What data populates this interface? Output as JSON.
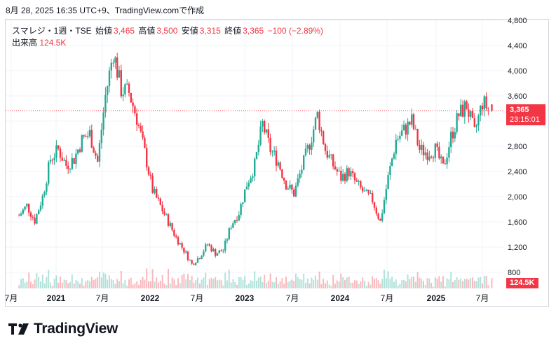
{
  "header": {
    "text": "8月 28, 2025 16:35 UTC+9、TradingView.comで作成"
  },
  "legend": {
    "symbol": "スマレジ・1週・TSE",
    "open_label": "始値",
    "open_value": "3,465",
    "high_label": "高値",
    "high_value": "3,500",
    "low_label": "安値",
    "low_value": "3,315",
    "close_label": "終値",
    "close_value": "3,365",
    "change": "−100 (−2.89%)",
    "volume_label": "出来高",
    "volume_value": "124.5K"
  },
  "badges": {
    "last_price": "3,365",
    "countdown": "23:15:01",
    "last_volume": "124.5K"
  },
  "logo": {
    "text": "TradingView",
    "icon": "tradingview-logo-icon"
  },
  "colors": {
    "up": "#22ab94",
    "down": "#f23645",
    "grid": "#f0f3fa",
    "text": "#131722"
  },
  "chart_data": {
    "type": "candlestick",
    "interval": "weekly",
    "y_axis": {
      "ticks": [
        "4,800",
        "4,400",
        "4,000",
        "3,600",
        "3,200",
        "2,800",
        "2,400",
        "2,000",
        "1,600",
        "1,200",
        "800"
      ],
      "ylim": [
        750,
        4800
      ]
    },
    "x_axis": {
      "ticks": [
        "7月",
        "2021",
        "7月",
        "2022",
        "7月",
        "2023",
        "7月",
        "2024",
        "7月",
        "2025",
        "7月"
      ]
    },
    "last_price": 3365,
    "grid": true,
    "anchors": [
      [
        "2020-08",
        1700
      ],
      [
        "2020-09",
        1860
      ],
      [
        "2020-10",
        1620
      ],
      [
        "2020-11",
        2000
      ],
      [
        "2020-12",
        2600
      ],
      [
        "2021-01",
        2750
      ],
      [
        "2021-02",
        2500
      ],
      [
        "2021-03",
        2600
      ],
      [
        "2021-04",
        2900
      ],
      [
        "2021-05",
        3000
      ],
      [
        "2021-06",
        2550
      ],
      [
        "2021-07",
        3600
      ],
      [
        "2021-08",
        4300
      ],
      [
        "2021-09",
        3700
      ],
      [
        "2021-10",
        3650
      ],
      [
        "2021-11",
        3250
      ],
      [
        "2021-12",
        2700
      ],
      [
        "2022-01",
        2100
      ],
      [
        "2022-02",
        1850
      ],
      [
        "2022-03",
        1600
      ],
      [
        "2022-04",
        1350
      ],
      [
        "2022-05",
        1150
      ],
      [
        "2022-06",
        930
      ],
      [
        "2022-07",
        1050
      ],
      [
        "2022-08",
        1250
      ],
      [
        "2022-09",
        1100
      ],
      [
        "2022-10",
        1150
      ],
      [
        "2022-11",
        1550
      ],
      [
        "2022-12",
        1750
      ],
      [
        "2023-01",
        2200
      ],
      [
        "2023-02",
        2500
      ],
      [
        "2023-03",
        3150
      ],
      [
        "2023-04",
        2750
      ],
      [
        "2023-05",
        2550
      ],
      [
        "2023-06",
        2200
      ],
      [
        "2023-07",
        2050
      ],
      [
        "2023-08",
        2450
      ],
      [
        "2023-09",
        2850
      ],
      [
        "2023-10",
        3300
      ],
      [
        "2023-11",
        2750
      ],
      [
        "2023-12",
        2500
      ],
      [
        "2024-01",
        2300
      ],
      [
        "2024-02",
        2400
      ],
      [
        "2024-03",
        2200
      ],
      [
        "2024-04",
        2050
      ],
      [
        "2024-05",
        1950
      ],
      [
        "2024-06",
        1600
      ],
      [
        "2024-07",
        2300
      ],
      [
        "2024-08",
        2900
      ],
      [
        "2024-09",
        3050
      ],
      [
        "2024-10",
        3200
      ],
      [
        "2024-11",
        2750
      ],
      [
        "2024-12",
        2700
      ],
      [
        "2025-01",
        2750
      ],
      [
        "2025-02",
        2450
      ],
      [
        "2025-03",
        2950
      ],
      [
        "2025-04",
        3300
      ],
      [
        "2025-05",
        3450
      ],
      [
        "2025-06",
        3000
      ],
      [
        "2025-07",
        3500
      ],
      [
        "2025-08",
        3365
      ]
    ]
  }
}
